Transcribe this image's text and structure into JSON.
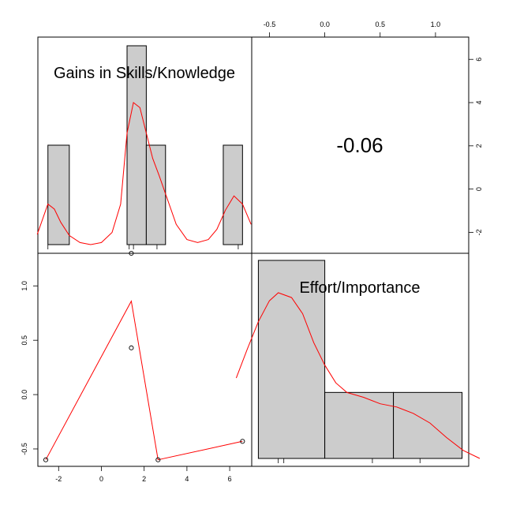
{
  "chart_data": {
    "type": "scatter-matrix",
    "variables": [
      "Gains in Skills/Knowledge",
      "Effort/Importance"
    ],
    "correlation": {
      "value": -0.06,
      "label": "-0.06"
    },
    "axes": {
      "x_var1_ticks": [
        -2,
        0,
        2,
        4,
        6
      ],
      "x_var2_ticks": [
        -0.5,
        0.0,
        0.5,
        1.0
      ],
      "x_var2_tick_labels": [
        "-0.5",
        "0.0",
        "0.5",
        "1.0"
      ],
      "y_var1_ticks": [
        -2,
        0,
        2,
        4,
        6
      ],
      "y_var2_ticks": [
        -0.5,
        0.0,
        0.5,
        1.0
      ],
      "y_var2_tick_labels": [
        "-0.5",
        "0.0",
        "0.5",
        "1.0"
      ],
      "var1_range": [
        -2.97,
        7.03
      ],
      "var2_range": [
        -0.66,
        1.3
      ]
    },
    "histogram_var1": {
      "bins": [
        [
          -2.5,
          -1.5
        ],
        [
          1.2,
          2.1
        ],
        [
          2.1,
          3.0
        ],
        [
          5.7,
          6.6
        ]
      ],
      "counts": [
        1,
        2,
        1,
        1
      ],
      "max_count": 2,
      "rug": [
        -2.5,
        1.3,
        1.5,
        2.6,
        6.4
      ],
      "density": [
        [
          -3.0,
          0.1
        ],
        [
          -2.8,
          0.22
        ],
        [
          -2.5,
          0.4
        ],
        [
          -2.2,
          0.35
        ],
        [
          -1.9,
          0.22
        ],
        [
          -1.5,
          0.09
        ],
        [
          -1.0,
          0.02
        ],
        [
          -0.5,
          0.0
        ],
        [
          0.0,
          0.02
        ],
        [
          0.5,
          0.12
        ],
        [
          0.9,
          0.4
        ],
        [
          1.2,
          1.1
        ],
        [
          1.5,
          1.4
        ],
        [
          1.8,
          1.35
        ],
        [
          2.1,
          1.1
        ],
        [
          2.4,
          0.85
        ],
        [
          2.7,
          0.68
        ],
        [
          3.0,
          0.5
        ],
        [
          3.5,
          0.2
        ],
        [
          4.0,
          0.05
        ],
        [
          4.5,
          0.02
        ],
        [
          5.0,
          0.05
        ],
        [
          5.4,
          0.15
        ],
        [
          5.8,
          0.34
        ],
        [
          6.2,
          0.48
        ],
        [
          6.6,
          0.4
        ],
        [
          7.0,
          0.2
        ]
      ]
    },
    "histogram_var2": {
      "bins": [
        [
          -0.6,
          0.0
        ],
        [
          0.0,
          0.62
        ],
        [
          0.62,
          1.24
        ]
      ],
      "counts": [
        3,
        1,
        1
      ],
      "max_count": 3,
      "rug": [
        -0.42,
        -0.37,
        0.43,
        0.86
      ],
      "density": [
        [
          -0.8,
          0.5
        ],
        [
          -0.7,
          0.68
        ],
        [
          -0.6,
          0.85
        ],
        [
          -0.5,
          0.98
        ],
        [
          -0.42,
          1.03
        ],
        [
          -0.3,
          1.0
        ],
        [
          -0.2,
          0.9
        ],
        [
          -0.1,
          0.72
        ],
        [
          0.0,
          0.58
        ],
        [
          0.1,
          0.47
        ],
        [
          0.2,
          0.41
        ],
        [
          0.35,
          0.38
        ],
        [
          0.5,
          0.34
        ],
        [
          0.65,
          0.32
        ],
        [
          0.8,
          0.28
        ],
        [
          0.95,
          0.22
        ],
        [
          1.1,
          0.13
        ],
        [
          1.25,
          0.05
        ],
        [
          1.4,
          0.0
        ]
      ]
    },
    "scatter": {
      "x": [
        -2.6,
        1.4,
        1.4,
        2.65,
        6.6
      ],
      "y": [
        -0.6,
        1.3,
        0.43,
        -0.6,
        -0.43
      ]
    },
    "smoother": {
      "x": [
        -2.6,
        1.4,
        2.65,
        6.6
      ],
      "y": [
        -0.6,
        0.86,
        -0.6,
        -0.43
      ]
    },
    "colors": {
      "bar_fill": "#cccccc",
      "curve": "#ff0000",
      "frame": "#000000"
    }
  }
}
